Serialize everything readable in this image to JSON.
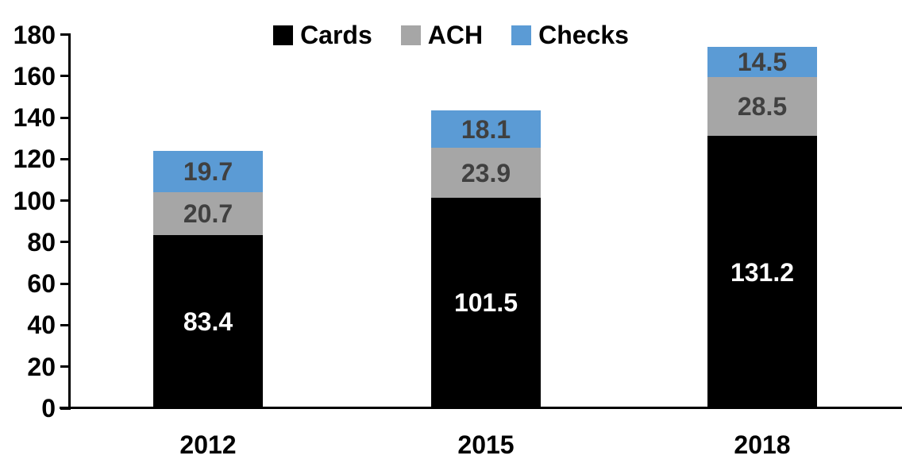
{
  "chart_data": {
    "type": "bar",
    "stacked": true,
    "title": "",
    "categories": [
      "2012",
      "2015",
      "2018"
    ],
    "series": [
      {
        "name": "Cards",
        "values": [
          83.4,
          101.5,
          131.2
        ],
        "color": "#000000",
        "label_color": "#FFFFFF"
      },
      {
        "name": "ACH",
        "values": [
          20.7,
          23.9,
          28.5
        ],
        "color": "#A6A6A6",
        "label_color": "#404040"
      },
      {
        "name": "Checks",
        "values": [
          19.7,
          18.1,
          14.5
        ],
        "color": "#5B9BD5",
        "label_color": "#404040"
      }
    ],
    "ylim": [
      0,
      180
    ],
    "ytick_step": 20,
    "ytick_labels": [
      "0",
      "20",
      "40",
      "60",
      "80",
      "100",
      "120",
      "140",
      "160",
      "180"
    ],
    "xlabel": "",
    "ylabel": "",
    "legend_position": "top",
    "grid": false,
    "data_labels": true,
    "data_label_decimals": 1
  },
  "colors": {
    "background": "#FFFFFF",
    "axis": "#000000",
    "cards": "#000000",
    "ach": "#A6A6A6",
    "checks": "#5B9BD5"
  }
}
